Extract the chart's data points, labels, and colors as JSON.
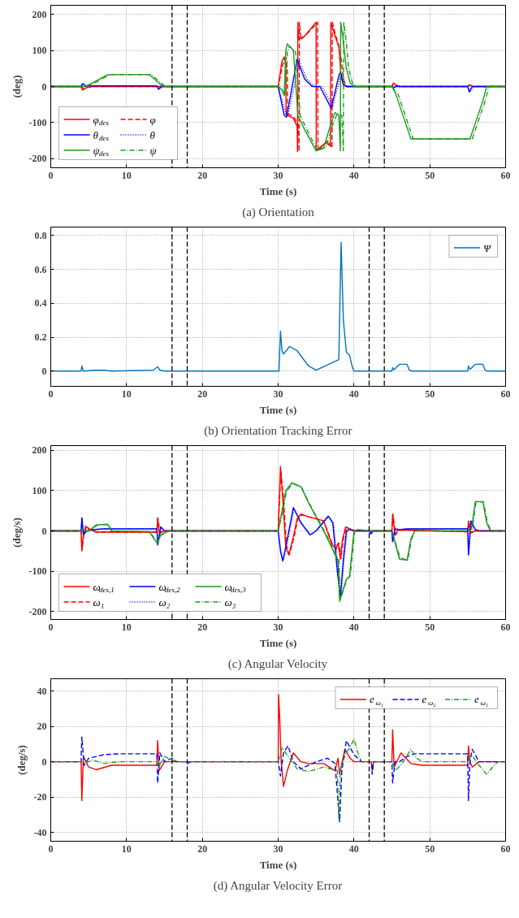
{
  "chart_data": [
    {
      "type": "line",
      "title": "(a) Orientation",
      "xlabel": "Time (s)",
      "ylabel": "(deg)",
      "xlim": [
        0,
        60
      ],
      "ylim": [
        -225,
        225
      ],
      "xticks": [
        0,
        10,
        20,
        30,
        40,
        50,
        60
      ],
      "yticks": [
        -200,
        -100,
        0,
        100,
        200
      ],
      "grid": true,
      "legend": "bottom left",
      "ref_lines": [
        {
          "axis": "x",
          "value": 16,
          "color": "#000000",
          "line_style": "dashed"
        },
        {
          "axis": "x",
          "value": 18,
          "color": "#000000",
          "line_style": "dashed"
        },
        {
          "axis": "x",
          "value": 42,
          "color": "#000000",
          "line_style": "dashed"
        },
        {
          "axis": "x",
          "value": 44,
          "color": "#000000",
          "line_style": "dashed"
        }
      ],
      "series": [
        {
          "name": "φ$_{des}$",
          "color": "#ff0000",
          "line_style": "solid",
          "x": [
            0,
            4,
            4.2,
            4.8,
            5.5,
            30,
            30.5,
            30.8,
            31.0,
            31.05,
            32.0,
            32.5,
            32.55,
            32.6,
            32.7,
            33.5,
            34.5,
            35.0,
            35.02,
            36.3,
            36.9,
            36.95,
            37.5,
            38.0,
            38.3,
            38.6,
            39,
            45,
            45.2,
            45.6,
            46,
            55,
            55.2,
            55.6,
            60
          ],
          "values": [
            0,
            0,
            -10,
            -2,
            0,
            0,
            70,
            82,
            60,
            -78,
            -88,
            -110,
            -180,
            178,
            130,
            140,
            165,
            178,
            -178,
            -155,
            -165,
            178,
            140,
            110,
            30,
            5,
            0,
            0,
            10,
            2,
            0,
            0,
            5,
            0,
            0
          ]
        },
        {
          "name": "φ",
          "color": "#ff0000",
          "line_style": "dashed",
          "x": [
            0,
            4,
            4.3,
            5,
            5.7,
            30,
            30.6,
            31.0,
            31.2,
            31.25,
            32.1,
            32.7,
            32.75,
            32.8,
            33.0,
            34.0,
            35.2,
            35.25,
            36.5,
            37.1,
            37.15,
            37.6,
            38.2,
            38.6,
            39,
            45,
            45.3,
            45.8,
            46.2,
            55,
            55.3,
            55.8,
            60
          ],
          "values": [
            0,
            0,
            -6,
            -2,
            0,
            0,
            60,
            80,
            50,
            -75,
            -85,
            -110,
            -180,
            178,
            130,
            150,
            178,
            -178,
            -150,
            -170,
            178,
            140,
            100,
            20,
            0,
            0,
            7,
            2,
            0,
            0,
            4,
            0,
            0
          ]
        },
        {
          "name": "θ$_{des}$",
          "color": "#0000ff",
          "line_style": "solid",
          "x": [
            0,
            4,
            4.2,
            4.6,
            5,
            14,
            14.2,
            14.6,
            30,
            30.8,
            31.1,
            32.5,
            33.5,
            34.5,
            35.5,
            37,
            38,
            38.2,
            38.6,
            39,
            45,
            45.2,
            45.5,
            55,
            55.2,
            55.6,
            60
          ],
          "values": [
            0,
            0,
            8,
            2,
            2,
            2,
            -8,
            0,
            0,
            -80,
            -85,
            75,
            20,
            0,
            0,
            -60,
            30,
            40,
            5,
            0,
            0,
            -3,
            0,
            0,
            -15,
            0,
            0
          ]
        },
        {
          "name": "θ",
          "color": "#0000ff",
          "line_style": "dotted",
          "x": [
            0,
            4,
            4.3,
            4.8,
            5.2,
            14,
            14.4,
            14.8,
            30,
            31.0,
            31.3,
            32.8,
            33.8,
            34.8,
            35.8,
            37.2,
            38.2,
            38.4,
            38.8,
            39.2,
            45,
            45.4,
            45.7,
            55,
            55.4,
            55.8,
            60
          ],
          "values": [
            0,
            0,
            6,
            2,
            2,
            2,
            -6,
            0,
            0,
            -75,
            -80,
            70,
            20,
            0,
            0,
            -55,
            28,
            36,
            5,
            0,
            0,
            -2,
            0,
            0,
            -12,
            0,
            0
          ]
        },
        {
          "name": "ψ$_{des}$",
          "color": "#1f9a1f",
          "line_style": "solid",
          "x": [
            0,
            4.5,
            5.5,
            7.5,
            13,
            14.5,
            15,
            30,
            30.5,
            30.8,
            31,
            31.2,
            32,
            32.6,
            33.5,
            35,
            36,
            37,
            37.5,
            38,
            38.2,
            38.25,
            38.5,
            39,
            39.5,
            40,
            45,
            45.5,
            47.5,
            55.3,
            57,
            57.5,
            60
          ],
          "values": [
            0,
            0,
            10,
            33,
            33,
            5,
            0,
            0,
            -10,
            -25,
            100,
            118,
            100,
            -80,
            -120,
            -178,
            -170,
            -100,
            -72,
            -80,
            -178,
            178,
            140,
            50,
            10,
            0,
            0,
            -20,
            -145,
            -145,
            -40,
            0,
            0
          ]
        },
        {
          "name": "ψ",
          "color": "#1f9a1f",
          "line_style": "dashdot",
          "x": [
            0,
            4.7,
            5.8,
            7.8,
            13.3,
            14.8,
            15.3,
            30,
            30.7,
            31.0,
            31.2,
            31.5,
            32.3,
            32.9,
            33.8,
            35.2,
            36.3,
            37.3,
            37.8,
            38.4,
            38.6,
            38.65,
            38.9,
            39.3,
            39.8,
            40.3,
            45,
            45.8,
            47.8,
            55.6,
            57.3,
            57.8,
            60
          ],
          "values": [
            0,
            0,
            10,
            33,
            33,
            5,
            0,
            0,
            -10,
            -25,
            95,
            112,
            95,
            -80,
            -120,
            -178,
            -168,
            -100,
            -75,
            -80,
            -178,
            178,
            140,
            50,
            10,
            0,
            0,
            -20,
            -145,
            -145,
            -40,
            0,
            0
          ]
        }
      ]
    },
    {
      "type": "line",
      "title": "(b) Orientation Tracking Error",
      "xlabel": "Time (s)",
      "xlim": [
        0,
        60
      ],
      "ylim": [
        -0.09,
        0.85
      ],
      "xticks": [
        0,
        10,
        20,
        30,
        40,
        50,
        60
      ],
      "yticks": [
        0,
        0.2,
        0.4,
        0.6,
        0.8
      ],
      "grid": true,
      "legend": "top right",
      "ref_lines": [
        {
          "axis": "x",
          "value": 16,
          "color": "#000000",
          "line_style": "dashed"
        },
        {
          "axis": "x",
          "value": 18,
          "color": "#000000",
          "line_style": "dashed"
        },
        {
          "axis": "x",
          "value": 42,
          "color": "#000000",
          "line_style": "dashed"
        },
        {
          "axis": "x",
          "value": 44,
          "color": "#000000",
          "line_style": "dashed"
        }
      ],
      "series": [
        {
          "name": "Ψ",
          "color": "#0072bd",
          "line_style": "solid",
          "x": [
            0,
            4,
            4.1,
            4.3,
            6,
            7,
            8,
            13.5,
            14.1,
            14.4,
            15,
            30.1,
            30.3,
            30.5,
            30.7,
            31.5,
            32.5,
            34,
            35,
            37.9,
            38,
            38.3,
            38.6,
            39,
            39.4,
            39.8,
            40,
            45,
            45.1,
            45.3,
            46,
            47,
            47.3,
            47.6,
            55,
            55.1,
            55.3,
            56,
            57,
            57.3,
            57.6,
            60
          ],
          "values": [
            0,
            0,
            0.03,
            0,
            0.005,
            0.005,
            0,
            0.005,
            0.025,
            0.005,
            0,
            0,
            0.235,
            0.12,
            0.1,
            0.145,
            0.12,
            0.03,
            0.005,
            0.065,
            0.07,
            0.76,
            0.3,
            0.11,
            0.095,
            0.02,
            0,
            0,
            0.02,
            0.008,
            0.04,
            0.04,
            0.005,
            0,
            0,
            0.03,
            0.01,
            0.04,
            0.04,
            0.005,
            0,
            0
          ]
        }
      ]
    },
    {
      "type": "line",
      "title": "(c) Angular Velocity",
      "xlabel": "Time (s)",
      "ylabel": "(deg/s)",
      "xlim": [
        0,
        60
      ],
      "ylim": [
        -220,
        212
      ],
      "xticks": [
        0,
        10,
        20,
        30,
        40,
        50,
        60
      ],
      "yticks": [
        -200,
        -100,
        0,
        100,
        200
      ],
      "grid": true,
      "legend": "bottom left",
      "ref_lines": [
        {
          "axis": "x",
          "value": 16,
          "color": "#000000",
          "line_style": "dashed"
        },
        {
          "axis": "x",
          "value": 18,
          "color": "#000000",
          "line_style": "dashed"
        },
        {
          "axis": "x",
          "value": 42,
          "color": "#000000",
          "line_style": "dashed"
        },
        {
          "axis": "x",
          "value": 44,
          "color": "#000000",
          "line_style": "dashed"
        }
      ],
      "series": [
        {
          "name": "ω$_{des,1}$",
          "color": "#ff0000",
          "line_style": "solid",
          "x": [
            0,
            4,
            4.1,
            4.3,
            4.6,
            5,
            6,
            14,
            14.1,
            14.3,
            15,
            30,
            30.3,
            30.6,
            31,
            31.4,
            32,
            32.5,
            33,
            34,
            36,
            37,
            37.6,
            37.9,
            38.2,
            38.5,
            38.9,
            39.3,
            40,
            45,
            45.1,
            45.4,
            45.8,
            47,
            55,
            55.1,
            55.3,
            56,
            60
          ],
          "values": [
            0,
            0,
            -50,
            -10,
            12,
            5,
            -3,
            -3,
            33,
            -5,
            0,
            0,
            160,
            80,
            -40,
            -60,
            -15,
            30,
            42,
            35,
            25,
            -30,
            -45,
            -30,
            -70,
            -20,
            10,
            5,
            0,
            0,
            42,
            -10,
            2,
            2,
            -2,
            25,
            -5,
            0,
            0
          ]
        },
        {
          "name": "ω$_{des,2}$",
          "color": "#0000ff",
          "line_style": "solid",
          "x": [
            0,
            4,
            4.1,
            4.3,
            4.7,
            5.5,
            7,
            14,
            14.1,
            14.5,
            15,
            30,
            30.3,
            30.6,
            31,
            32,
            33,
            34.2,
            35,
            36.6,
            37.2,
            37.8,
            38.2,
            38.6,
            39,
            39.5,
            40,
            42,
            42.2,
            42.5,
            45,
            45.1,
            45.4,
            46,
            47,
            55,
            55.1,
            55.4,
            56,
            56.5,
            60
          ],
          "values": [
            0,
            0,
            33,
            -10,
            0,
            3,
            5,
            5,
            -35,
            10,
            0,
            0,
            -50,
            -75,
            -40,
            58,
            20,
            -10,
            0,
            37,
            20,
            -100,
            -165,
            -70,
            0,
            5,
            0,
            0,
            -8,
            0,
            0,
            -27,
            5,
            3,
            5,
            5,
            -60,
            25,
            3,
            0,
            0
          ]
        },
        {
          "name": "ω$_{des,3}$",
          "color": "#1f9a1f",
          "line_style": "solid",
          "x": [
            0,
            5,
            6,
            7.5,
            8,
            13,
            14,
            14.5,
            15.5,
            30,
            30.5,
            31,
            31.8,
            33,
            34,
            36,
            37.9,
            38.1,
            38.5,
            39,
            39.4,
            40,
            40.5,
            42,
            45,
            46,
            47,
            47.5,
            48,
            55,
            55.5,
            56,
            57,
            57.5,
            58,
            60
          ],
          "values": [
            0,
            0,
            15,
            17,
            0,
            -2,
            -30,
            -10,
            0,
            0,
            50,
            100,
            120,
            110,
            70,
            0,
            -75,
            -175,
            -150,
            -120,
            -115,
            0,
            3,
            0,
            0,
            -70,
            -73,
            -20,
            0,
            0,
            5,
            73,
            73,
            20,
            0,
            0
          ]
        },
        {
          "name": "ω₁",
          "color": "#ff0000",
          "line_style": "dashed",
          "x": [
            0,
            4,
            4.15,
            4.35,
            4.7,
            5.1,
            6,
            14,
            14.15,
            14.4,
            15,
            30,
            30.35,
            30.7,
            31.1,
            31.5,
            32.1,
            32.6,
            33.1,
            34,
            36,
            37.1,
            37.7,
            38,
            38.3,
            38.6,
            39,
            39.4,
            40,
            45,
            45.15,
            45.5,
            45.9,
            47,
            55,
            55.15,
            55.4,
            56,
            60
          ],
          "values": [
            0,
            0,
            -45,
            -10,
            11,
            5,
            -3,
            -3,
            30,
            -5,
            0,
            0,
            150,
            80,
            -38,
            -58,
            -15,
            30,
            40,
            35,
            25,
            -30,
            -45,
            -30,
            -68,
            -20,
            10,
            5,
            0,
            0,
            40,
            -10,
            2,
            2,
            -2,
            22,
            -5,
            0,
            0
          ]
        },
        {
          "name": "ω₂",
          "color": "#0000ff",
          "line_style": "dotted",
          "x": [
            0,
            4,
            4.15,
            4.35,
            4.8,
            5.6,
            7,
            14,
            14.15,
            14.6,
            15,
            30,
            30.35,
            30.7,
            31.1,
            32.1,
            33.1,
            34.3,
            35,
            36.7,
            37.3,
            37.9,
            38.3,
            38.7,
            39.1,
            39.6,
            40,
            42,
            42.3,
            42.6,
            45,
            45.15,
            45.5,
            46,
            47,
            55,
            55.15,
            55.5,
            56,
            56.6,
            60
          ],
          "values": [
            0,
            0,
            30,
            -9,
            0,
            3,
            5,
            5,
            -32,
            9,
            0,
            0,
            -48,
            -72,
            -38,
            55,
            20,
            -10,
            0,
            35,
            20,
            -95,
            -160,
            -70,
            0,
            5,
            0,
            0,
            -7,
            0,
            0,
            -25,
            5,
            3,
            5,
            5,
            -55,
            23,
            3,
            0,
            0
          ]
        },
        {
          "name": "ω₃",
          "color": "#1f9a1f",
          "line_style": "dashdot",
          "x": [
            0,
            5.1,
            6.1,
            7.6,
            8.1,
            13,
            14.1,
            14.6,
            15.6,
            30,
            30.6,
            31.1,
            31.9,
            33.1,
            34.1,
            36.1,
            38,
            38.2,
            38.6,
            39.1,
            39.5,
            40.1,
            40.6,
            42,
            45,
            46.1,
            47.1,
            47.6,
            48.1,
            55,
            55.6,
            56.1,
            57.1,
            57.6,
            58.1,
            60
          ],
          "values": [
            0,
            0,
            14,
            16,
            0,
            -2,
            -28,
            -10,
            0,
            0,
            48,
            98,
            118,
            108,
            68,
            0,
            -73,
            -170,
            -148,
            -118,
            -112,
            0,
            3,
            0,
            0,
            -68,
            -72,
            -20,
            0,
            0,
            5,
            72,
            72,
            20,
            0,
            0
          ]
        }
      ]
    },
    {
      "type": "line",
      "title": "(d) Angular Velocity Error",
      "xlabel": "Time (s)",
      "ylabel": "(deg/s)",
      "xlim": [
        0,
        60
      ],
      "ylim": [
        -45,
        47
      ],
      "xticks": [
        0,
        10,
        20,
        30,
        40,
        50,
        60
      ],
      "yticks": [
        -40,
        -20,
        0,
        20,
        40
      ],
      "grid": true,
      "legend": "top right",
      "ref_lines": [
        {
          "axis": "x",
          "value": 16,
          "color": "#000000",
          "line_style": "dashed"
        },
        {
          "axis": "x",
          "value": 18,
          "color": "#000000",
          "line_style": "dashed"
        },
        {
          "axis": "x",
          "value": 42,
          "color": "#000000",
          "line_style": "dashed"
        },
        {
          "axis": "x",
          "value": 44,
          "color": "#000000",
          "line_style": "dashed"
        }
      ],
      "series": [
        {
          "name": "e$_{ω₁}$",
          "color": "#ff0000",
          "line_style": "solid",
          "x": [
            0,
            4,
            4.1,
            4.3,
            5,
            6,
            8,
            14,
            14.1,
            14.3,
            15,
            30,
            30.05,
            30.2,
            30.4,
            30.7,
            31.2,
            32,
            33,
            34,
            36,
            37.5,
            37.9,
            38.1,
            38.8,
            39.5,
            40,
            42.3,
            42.4,
            42.6,
            45,
            45.1,
            45.3,
            46.2,
            47.5,
            49,
            55,
            55.1,
            55.3,
            55.6,
            56.5,
            60
          ],
          "values": [
            0,
            0,
            -22,
            3,
            -3,
            -4.5,
            -2,
            -2,
            12,
            -5,
            0,
            0,
            38,
            25,
            0,
            -14,
            -5,
            5,
            0,
            -1,
            -1,
            -5,
            2,
            -7,
            7,
            2,
            0,
            0,
            -5,
            0,
            0,
            18,
            -3,
            5,
            -1,
            -2,
            -2,
            9,
            0,
            -3,
            0,
            0
          ]
        },
        {
          "name": "e$_{ω₂}$",
          "color": "#0000ff",
          "line_style": "dashed",
          "x": [
            0,
            4,
            4.1,
            4.4,
            5,
            7,
            9,
            14,
            14.1,
            14.4,
            15,
            16,
            16.5,
            17.8,
            18,
            18.5,
            30,
            30.3,
            30.7,
            31.3,
            32,
            33,
            35,
            36.5,
            37.5,
            38.1,
            38.4,
            39,
            40,
            41,
            42.3,
            42.4,
            42.6,
            45,
            45.1,
            45.4,
            46,
            47,
            48,
            55,
            55.1,
            55.3,
            55.6,
            56.5,
            60
          ],
          "values": [
            0,
            0,
            14,
            -2,
            2,
            4,
            4.5,
            4.5,
            -12,
            5,
            0,
            2,
            0,
            0,
            -1,
            0,
            0,
            -8,
            5,
            9,
            0,
            -4,
            0,
            2,
            -1,
            -34,
            -5,
            12,
            4,
            0,
            0,
            -7,
            0,
            0,
            -12,
            0,
            0,
            3,
            4.5,
            4.5,
            -22,
            0,
            7,
            0,
            0
          ]
        },
        {
          "name": "e$_{ω₃}$",
          "color": "#1f9a1f",
          "line_style": "dashdot",
          "x": [
            0,
            4,
            4.5,
            5.5,
            7,
            9,
            14,
            14.2,
            15,
            16,
            17,
            30,
            30.5,
            31.5,
            32.5,
            34,
            36,
            37.8,
            38,
            38.2,
            38.9,
            39.5,
            40,
            40.5,
            41,
            45,
            45.5,
            46.5,
            47.5,
            48.3,
            49,
            55,
            55.5,
            56.5,
            57.5,
            58.5,
            59,
            60
          ],
          "values": [
            0,
            0,
            -1,
            1,
            -1,
            0,
            0,
            -3,
            3,
            1,
            0,
            0,
            8,
            2,
            -4,
            -5.5,
            -3,
            -5,
            -32,
            -5,
            5,
            8,
            13,
            5,
            0,
            0,
            -5,
            0,
            7,
            2,
            0,
            0,
            4,
            -2,
            -7,
            -2,
            0,
            0
          ]
        }
      ]
    }
  ]
}
